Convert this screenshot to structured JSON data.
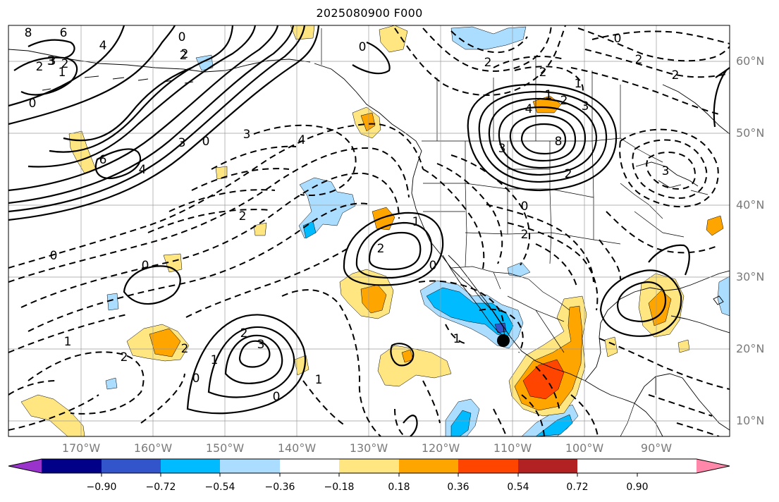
{
  "title": "2025080900 F000",
  "latitude_labels": [
    "60°N",
    "50°N",
    "40°N",
    "30°N",
    "20°N",
    "10°N"
  ],
  "longitude_labels": [
    "170°W",
    "160°W",
    "150°W",
    "140°W",
    "130°W",
    "120°W",
    "110°W",
    "100°W",
    "90°W"
  ],
  "colorbar": {
    "ticks": [
      "−0.90",
      "−0.72",
      "−0.54",
      "−0.36",
      "−0.18",
      "0.18",
      "0.36",
      "0.54",
      "0.72",
      "0.90"
    ],
    "colors": [
      "#9933cc",
      "#000088",
      "#3355cc",
      "#00bbff",
      "#aaddff",
      "#ffffff",
      "#ffe680",
      "#ffa500",
      "#ff4500",
      "#b22222",
      "#ff88aa"
    ]
  },
  "contour_labels": {
    "positive": [
      "8",
      "6",
      "4",
      "3",
      "2",
      "0",
      "0",
      "6",
      "4",
      "3",
      "0",
      "2",
      "4",
      "1",
      "2",
      "3",
      "3",
      "8",
      "2",
      "1",
      "0",
      "1",
      "2",
      "3",
      "2",
      "0",
      "0"
    ],
    "negative": [
      "2",
      "3",
      "2",
      "1",
      "3",
      "4",
      "2",
      "1",
      "0",
      "2",
      "2",
      "0",
      "0",
      "2",
      "2",
      "1",
      "2",
      "3",
      "2",
      "1",
      "0",
      "0",
      "2",
      "1"
    ]
  }
}
